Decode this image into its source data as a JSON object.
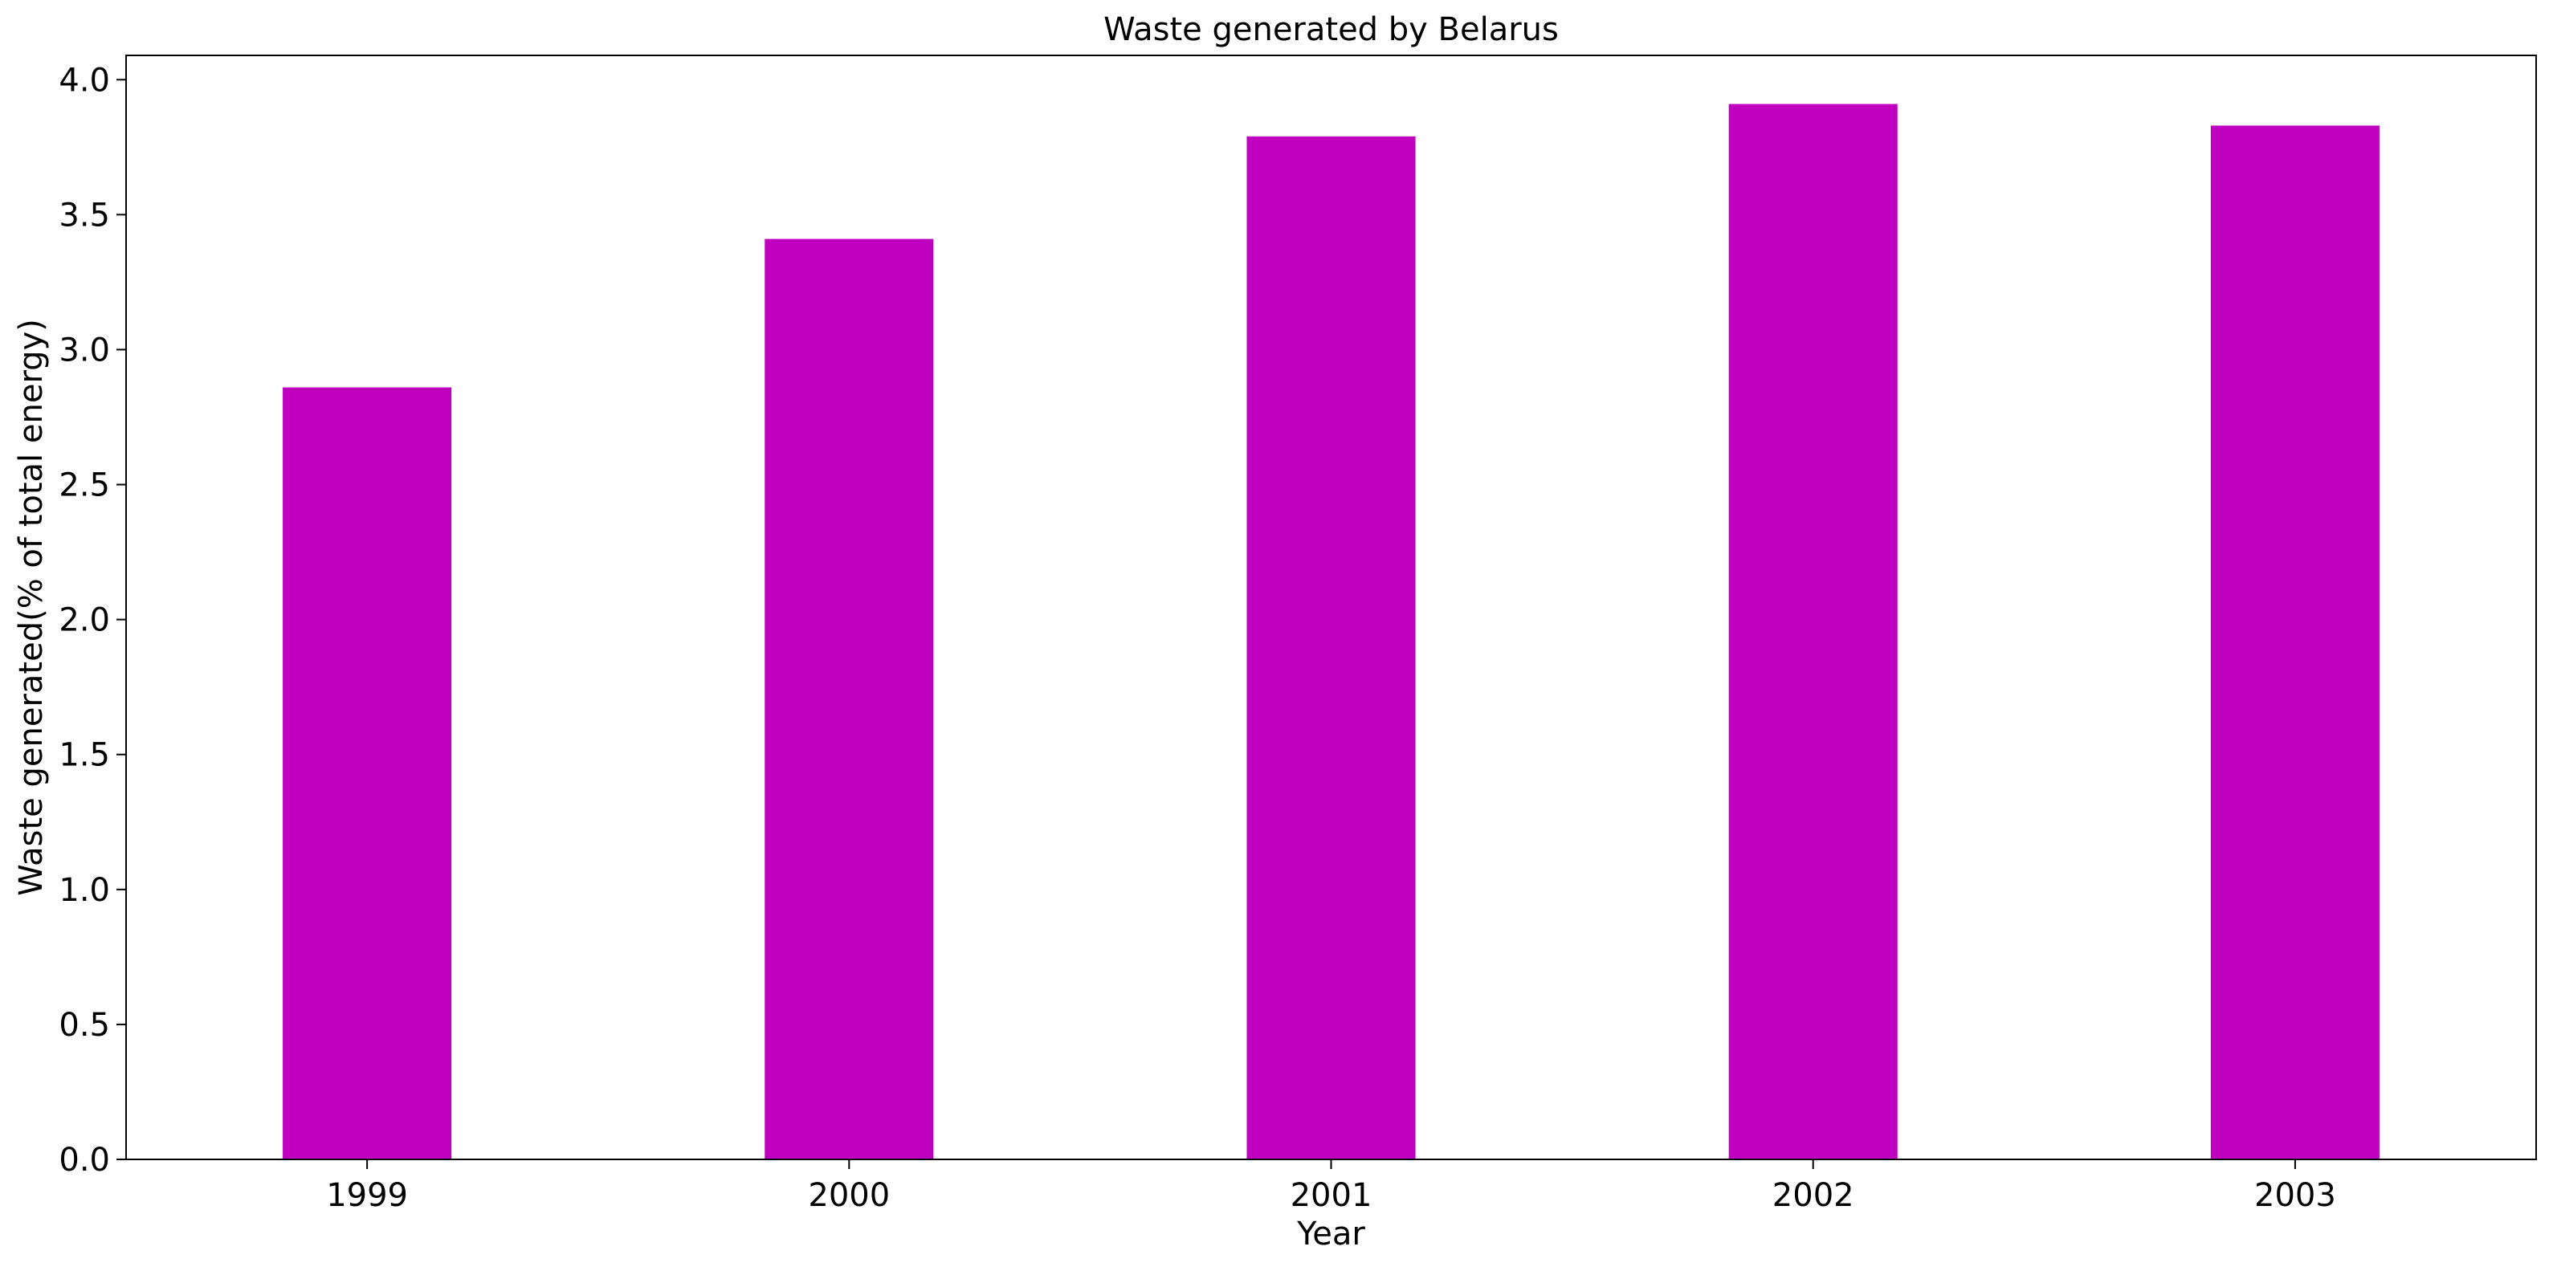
{
  "chart_data": {
    "type": "bar",
    "title": "Waste generated by Belarus",
    "xlabel": "Year",
    "ylabel": "Waste generated(% of total energy)",
    "categories": [
      "1999",
      "2000",
      "2001",
      "2002",
      "2003"
    ],
    "values": [
      2.86,
      3.41,
      3.79,
      3.91,
      3.83
    ],
    "ylim": [
      0,
      4.09
    ],
    "yticks": [
      0.0,
      0.5,
      1.0,
      1.5,
      2.0,
      2.5,
      3.0,
      3.5,
      4.0
    ],
    "ytick_labels": [
      "0.0",
      "0.5",
      "1.0",
      "1.5",
      "2.0",
      "2.5",
      "3.0",
      "3.5",
      "4.0"
    ],
    "bar_color": "#bf00bf",
    "grid": false,
    "legend": "none"
  }
}
